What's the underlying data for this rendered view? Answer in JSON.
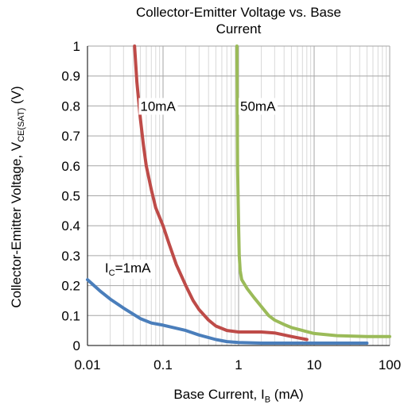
{
  "chart_data": {
    "type": "line",
    "title_line1": "Collector-Emitter Voltage vs. Base",
    "title_line2": "Current",
    "xlabel": {
      "text": "Base Current, I",
      "sub": "B",
      "suffix": " (mA)"
    },
    "ylabel": {
      "text": "Collector-Emitter Voltage, V",
      "sub": "CE(SAT)",
      "suffix": " (V)"
    },
    "x_scale": "log",
    "xlim": [
      0.01,
      100
    ],
    "ylim": [
      0,
      1
    ],
    "x_ticks": [
      {
        "value": 0.01,
        "label": "0.01"
      },
      {
        "value": 0.1,
        "label": "0.1"
      },
      {
        "value": 1,
        "label": "1"
      },
      {
        "value": 10,
        "label": "10"
      },
      {
        "value": 100,
        "label": "100"
      }
    ],
    "y_ticks": [
      {
        "value": 0,
        "label": "0"
      },
      {
        "value": 0.1,
        "label": "0.1"
      },
      {
        "value": 0.2,
        "label": "0.2"
      },
      {
        "value": 0.3,
        "label": "0.3"
      },
      {
        "value": 0.4,
        "label": "0.4"
      },
      {
        "value": 0.5,
        "label": "0.5"
      },
      {
        "value": 0.6,
        "label": "0.6"
      },
      {
        "value": 0.7,
        "label": "0.7"
      },
      {
        "value": 0.8,
        "label": "0.8"
      },
      {
        "value": 0.9,
        "label": "0.9"
      },
      {
        "value": 1,
        "label": "1"
      }
    ],
    "grid": true,
    "series": [
      {
        "color": "#4a7ebb",
        "x": [
          0.01,
          0.015,
          0.02,
          0.03,
          0.05,
          0.07,
          0.1,
          0.2,
          0.3,
          0.5,
          0.7,
          1,
          2,
          5,
          10,
          20,
          50
        ],
        "y": [
          0.22,
          0.18,
          0.155,
          0.125,
          0.09,
          0.075,
          0.068,
          0.05,
          0.035,
          0.02,
          0.013,
          0.01,
          0.008,
          0.008,
          0.008,
          0.008,
          0.008
        ]
      },
      {
        "color": "#be4b48",
        "x": [
          0.042,
          0.045,
          0.05,
          0.055,
          0.06,
          0.07,
          0.08,
          0.1,
          0.12,
          0.15,
          0.2,
          0.25,
          0.3,
          0.4,
          0.5,
          0.7,
          1,
          2,
          3,
          5,
          8
        ],
        "y": [
          1.0,
          0.88,
          0.76,
          0.67,
          0.6,
          0.52,
          0.46,
          0.4,
          0.34,
          0.27,
          0.2,
          0.15,
          0.12,
          0.085,
          0.065,
          0.05,
          0.045,
          0.045,
          0.042,
          0.03,
          0.02
        ]
      },
      {
        "color": "#9bbb59",
        "x": [
          0.95,
          0.97,
          1.0,
          1.02,
          1.05,
          1.1,
          1.3,
          1.6,
          2,
          2.5,
          3,
          4,
          5,
          7,
          10,
          20,
          50,
          100
        ],
        "y": [
          1.0,
          0.6,
          0.4,
          0.3,
          0.25,
          0.22,
          0.19,
          0.16,
          0.13,
          0.1,
          0.085,
          0.07,
          0.06,
          0.05,
          0.04,
          0.033,
          0.03,
          0.03
        ]
      }
    ],
    "annotations": [
      {
        "text": "I",
        "sub": "C",
        "suffix": "=1mA",
        "x": 0.017,
        "y": 0.26
      },
      {
        "text": "10mA",
        "x": 0.05,
        "y": 0.8
      },
      {
        "text": "50mA",
        "x": 1.05,
        "y": 0.8
      }
    ]
  }
}
